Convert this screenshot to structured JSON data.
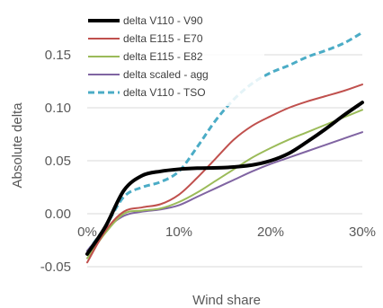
{
  "chart_data": {
    "type": "line",
    "title": "",
    "xlabel": "Wind share",
    "ylabel": "Absolute delta",
    "xlim": [
      0,
      0.3
    ],
    "ylim": [
      -0.05,
      0.15
    ],
    "x_ticks": [
      {
        "value": 0.0,
        "label": "0%"
      },
      {
        "value": 0.1,
        "label": "10%"
      },
      {
        "value": 0.2,
        "label": "20%"
      },
      {
        "value": 0.3,
        "label": "30%"
      }
    ],
    "y_ticks": [
      {
        "value": -0.05,
        "label": "-0.05"
      },
      {
        "value": 0.0,
        "label": "0.00"
      },
      {
        "value": 0.05,
        "label": "0.05"
      },
      {
        "value": 0.1,
        "label": "0.10"
      },
      {
        "value": 0.15,
        "label": "0.15"
      }
    ],
    "grid": "horizontal",
    "legend_position": "top-left",
    "series": [
      {
        "name": "delta V110 - V90",
        "color": "#000000",
        "dash": "solid",
        "width": 4,
        "points": [
          [
            0,
            -0.038
          ],
          [
            0.02,
            -0.012
          ],
          [
            0.04,
            0.022
          ],
          [
            0.06,
            0.036
          ],
          [
            0.08,
            0.04
          ],
          [
            0.1,
            0.042
          ],
          [
            0.12,
            0.043
          ],
          [
            0.15,
            0.0435
          ],
          [
            0.18,
            0.046
          ],
          [
            0.2,
            0.05
          ],
          [
            0.22,
            0.057
          ],
          [
            0.24,
            0.068
          ],
          [
            0.26,
            0.08
          ],
          [
            0.28,
            0.093
          ],
          [
            0.3,
            0.105
          ]
        ]
      },
      {
        "name": "delta E115 - E70",
        "color": "#c0504d",
        "dash": "solid",
        "width": 2,
        "points": [
          [
            0,
            -0.046
          ],
          [
            0.02,
            -0.016
          ],
          [
            0.04,
            0.002
          ],
          [
            0.06,
            0.006
          ],
          [
            0.08,
            0.009
          ],
          [
            0.1,
            0.018
          ],
          [
            0.12,
            0.034
          ],
          [
            0.14,
            0.052
          ],
          [
            0.16,
            0.07
          ],
          [
            0.18,
            0.083
          ],
          [
            0.2,
            0.092
          ],
          [
            0.22,
            0.1
          ],
          [
            0.24,
            0.106
          ],
          [
            0.26,
            0.111
          ],
          [
            0.28,
            0.116
          ],
          [
            0.3,
            0.122
          ]
        ]
      },
      {
        "name": "delta E115 - E82",
        "color": "#9bbb59",
        "dash": "solid",
        "width": 2,
        "points": [
          [
            0,
            -0.042
          ],
          [
            0.02,
            -0.018
          ],
          [
            0.04,
            0.0
          ],
          [
            0.06,
            0.003
          ],
          [
            0.08,
            0.005
          ],
          [
            0.1,
            0.011
          ],
          [
            0.12,
            0.02
          ],
          [
            0.14,
            0.031
          ],
          [
            0.16,
            0.042
          ],
          [
            0.18,
            0.053
          ],
          [
            0.2,
            0.062
          ],
          [
            0.22,
            0.07
          ],
          [
            0.24,
            0.077
          ],
          [
            0.26,
            0.084
          ],
          [
            0.28,
            0.091
          ],
          [
            0.3,
            0.098
          ]
        ]
      },
      {
        "name": "delta scaled - agg",
        "color": "#8064a2",
        "dash": "solid",
        "width": 2,
        "points": [
          [
            0,
            -0.035
          ],
          [
            0.02,
            -0.015
          ],
          [
            0.04,
            -0.002
          ],
          [
            0.06,
            0.002
          ],
          [
            0.08,
            0.004
          ],
          [
            0.1,
            0.008
          ],
          [
            0.12,
            0.016
          ],
          [
            0.14,
            0.024
          ],
          [
            0.16,
            0.032
          ],
          [
            0.18,
            0.04
          ],
          [
            0.2,
            0.047
          ],
          [
            0.22,
            0.053
          ],
          [
            0.24,
            0.059
          ],
          [
            0.26,
            0.065
          ],
          [
            0.28,
            0.071
          ],
          [
            0.3,
            0.077
          ]
        ]
      },
      {
        "name": "delta V110 - TSO",
        "color": "#4bacc6",
        "dash": "dashed",
        "width": 3,
        "points": [
          [
            0,
            -0.036
          ],
          [
            0.02,
            -0.012
          ],
          [
            0.04,
            0.016
          ],
          [
            0.06,
            0.025
          ],
          [
            0.08,
            0.03
          ],
          [
            0.1,
            0.04
          ],
          [
            0.12,
            0.063
          ],
          [
            0.14,
            0.088
          ],
          [
            0.16,
            0.108
          ],
          [
            0.18,
            0.123
          ],
          [
            0.2,
            0.133
          ],
          [
            0.22,
            0.14
          ],
          [
            0.24,
            0.148
          ],
          [
            0.26,
            0.154
          ],
          [
            0.28,
            0.161
          ],
          [
            0.3,
            0.171
          ]
        ]
      }
    ]
  }
}
